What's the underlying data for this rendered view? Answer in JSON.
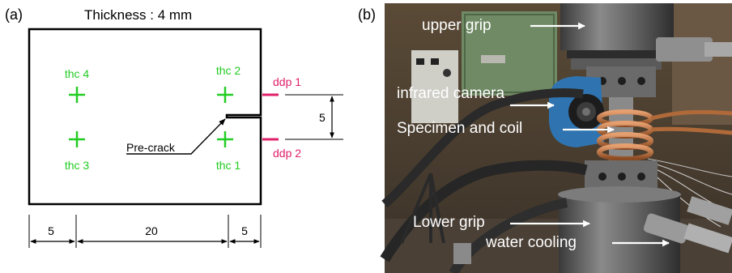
{
  "panel_a": {
    "label": "(a)",
    "title": "Thickness : 4 mm",
    "thermocouples": [
      {
        "id": "thc4",
        "label": "thc 4"
      },
      {
        "id": "thc2",
        "label": "thc 2"
      },
      {
        "id": "thc3",
        "label": "thc 3"
      },
      {
        "id": "thc1",
        "label": "thc 1"
      }
    ],
    "probes": [
      {
        "id": "ddp1",
        "label": "ddp 1"
      },
      {
        "id": "ddp2",
        "label": "ddp 2"
      }
    ],
    "precrack_label": "Pre-crack",
    "vertical_dimension": "5",
    "dimensions": [
      {
        "id": "left",
        "label": "5"
      },
      {
        "id": "middle",
        "label": "20"
      },
      {
        "id": "right",
        "label": "5"
      }
    ]
  },
  "panel_b": {
    "label": "(b)",
    "annotations": [
      {
        "id": "upper-grip",
        "label": "upper grip"
      },
      {
        "id": "infrared-camera",
        "label": "infrared camera"
      },
      {
        "id": "specimen-coil",
        "label": "Specimen and coil"
      },
      {
        "id": "lower-grip",
        "label": "Lower grip"
      },
      {
        "id": "water-cooling",
        "label": "water cooling"
      }
    ]
  },
  "colors": {
    "thermocouple": "#22cc22",
    "probe": "#e0206a",
    "outline": "#000000",
    "photo_text": "#ffffff"
  }
}
